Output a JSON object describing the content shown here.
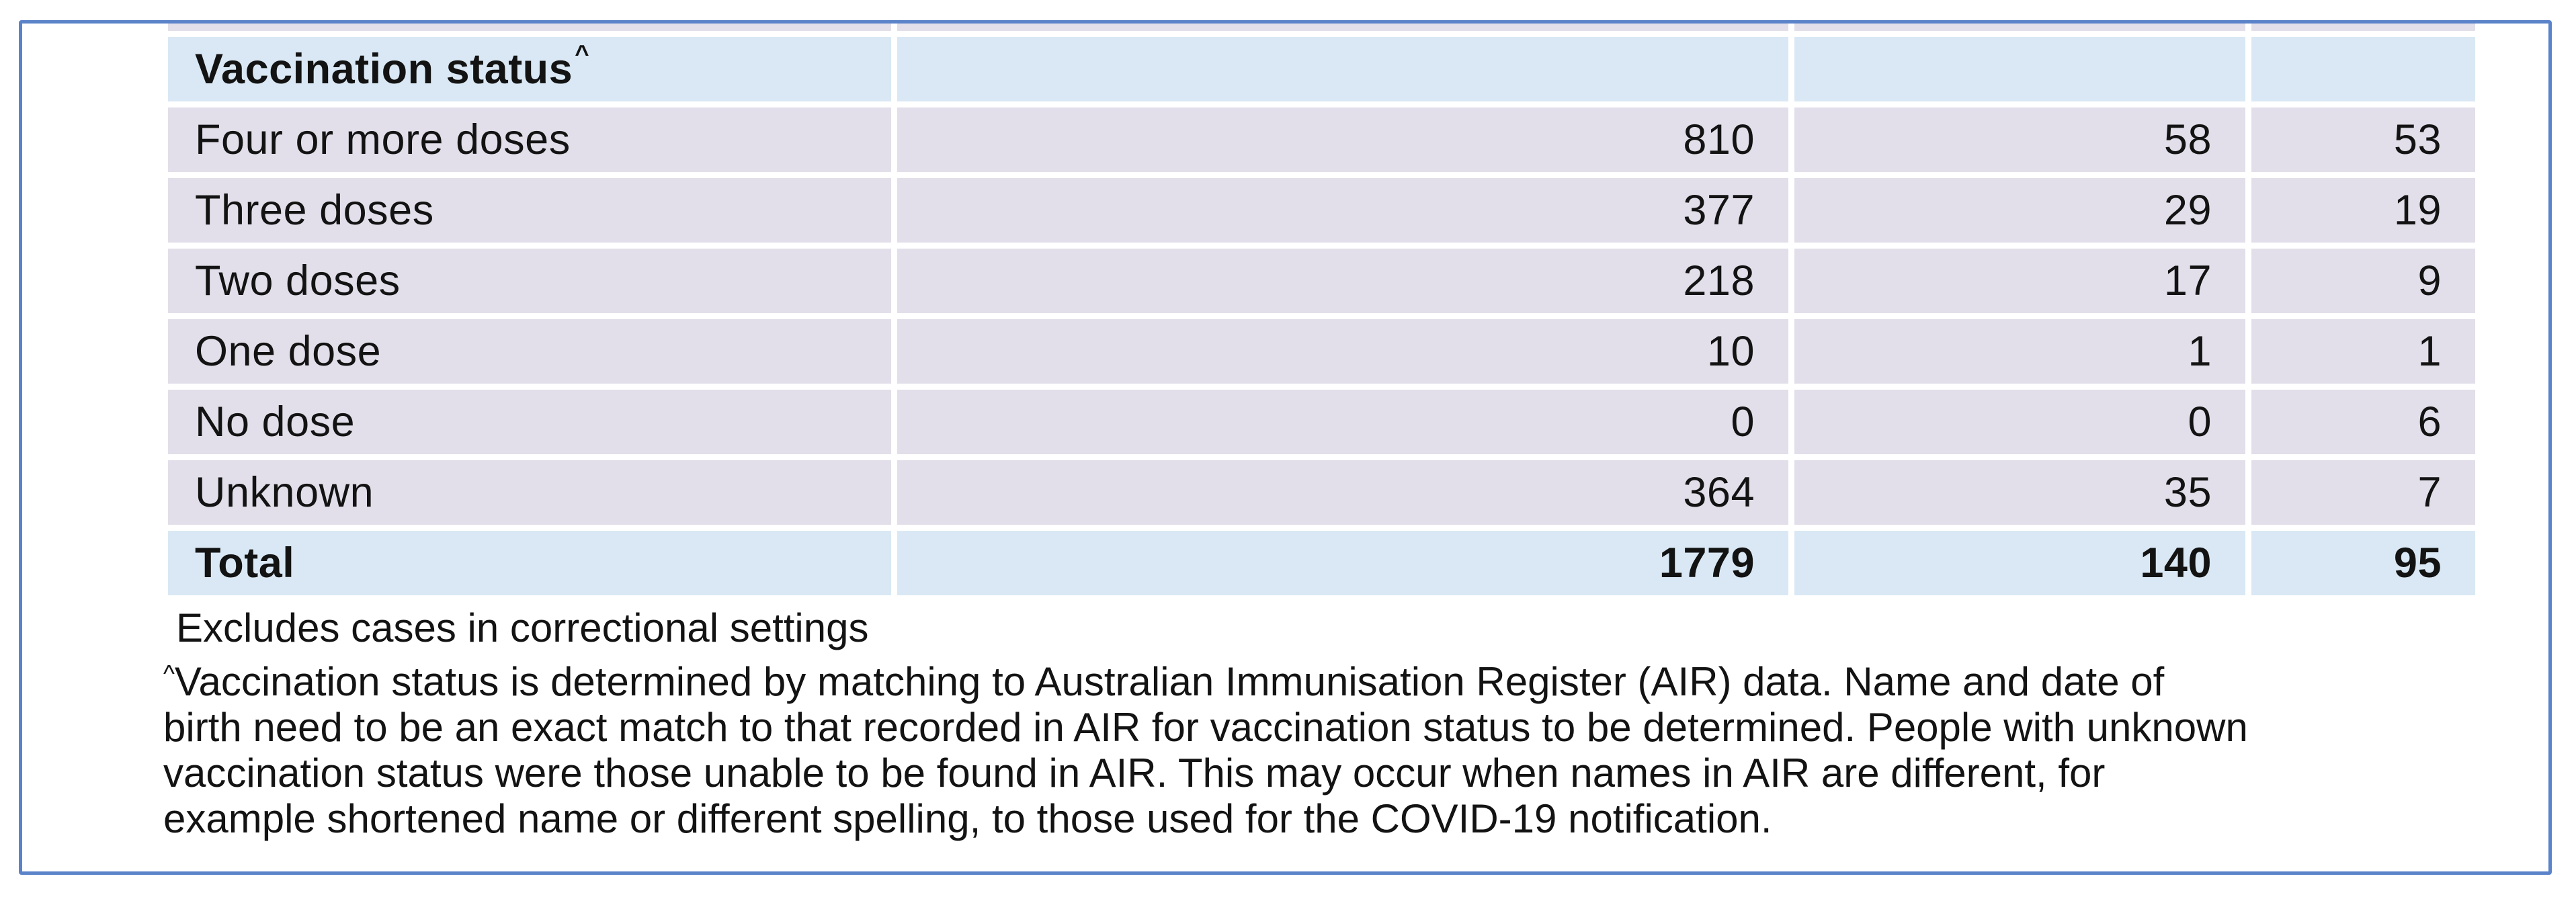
{
  "table": {
    "header": {
      "label": "Vaccination status",
      "superscript": "^"
    },
    "columns": [
      "status-label",
      "value-col-1",
      "value-col-2",
      "value-col-3"
    ],
    "rows": [
      {
        "label": "Four or more doses",
        "values": [
          "810",
          "58",
          "53"
        ]
      },
      {
        "label": "Three doses",
        "values": [
          "377",
          "29",
          "19"
        ]
      },
      {
        "label": "Two doses",
        "values": [
          "218",
          "17",
          "9"
        ]
      },
      {
        "label": "One dose",
        "values": [
          "10",
          "1",
          "1"
        ]
      },
      {
        "label": "No dose",
        "values": [
          "0",
          "0",
          "6"
        ]
      },
      {
        "label": "Unknown",
        "values": [
          "364",
          "35",
          "7"
        ]
      }
    ],
    "total": {
      "label": "Total",
      "values": [
        "1779",
        "140",
        "95"
      ]
    }
  },
  "footnotes": {
    "lines": [
      {
        "sup": "",
        "indent": true,
        "text": "Excludes cases in correctional settings"
      },
      {
        "sup": "^",
        "indent": false,
        "text": "Vaccination status is determined by matching to Australian Immunisation Register (AIR) data. Name and date of"
      },
      {
        "sup": "",
        "indent": false,
        "text": "birth need to be an exact match to that recorded in AIR for vaccination status to be determined. People with unknown"
      },
      {
        "sup": "",
        "indent": false,
        "text": "vaccination status were those unable to be found in AIR. This may occur when names in AIR are different, for"
      },
      {
        "sup": "",
        "indent": false,
        "text": "example shortened name or different spelling, to those used for the COVID-19 notification."
      }
    ]
  },
  "colors": {
    "header_row_bg": "#d9e8f4",
    "total_row_bg": "#d9e8f4",
    "data_row_bg": "#e2dfea",
    "frame_border": "#5b83c9",
    "text": "#131313"
  }
}
